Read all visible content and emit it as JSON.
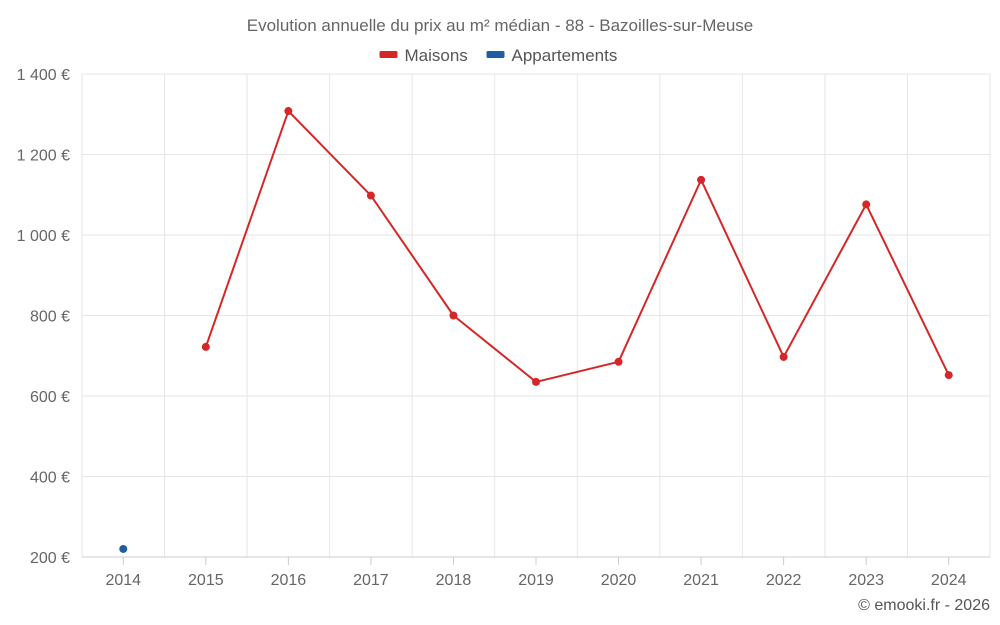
{
  "chart_data": {
    "type": "line",
    "title": "Evolution annuelle du prix au m² médian - 88 - Bazoilles-sur-Meuse",
    "categories": [
      "2014",
      "2015",
      "2016",
      "2017",
      "2018",
      "2019",
      "2020",
      "2021",
      "2022",
      "2023",
      "2024"
    ],
    "series": [
      {
        "name": "Maisons",
        "color": "#d62728",
        "values": [
          null,
          722,
          1308,
          1098,
          800,
          635,
          685,
          1137,
          697,
          1076,
          652
        ]
      },
      {
        "name": "Appartements",
        "color": "#1f5fa0",
        "values": [
          220,
          null,
          null,
          null,
          null,
          null,
          null,
          null,
          null,
          null,
          null
        ]
      }
    ],
    "y_ticks": [
      200,
      400,
      600,
      800,
      1000,
      1200,
      1400
    ],
    "y_tick_labels": [
      "200 €",
      "400 €",
      "600 €",
      "800 €",
      "1 000 €",
      "1 200 €",
      "1 400 €"
    ],
    "ylim": [
      200,
      1400
    ],
    "grid": true,
    "legend_position": "top-center",
    "xlabel": "",
    "ylabel": ""
  },
  "credit": "© emooki.fr - 2026"
}
